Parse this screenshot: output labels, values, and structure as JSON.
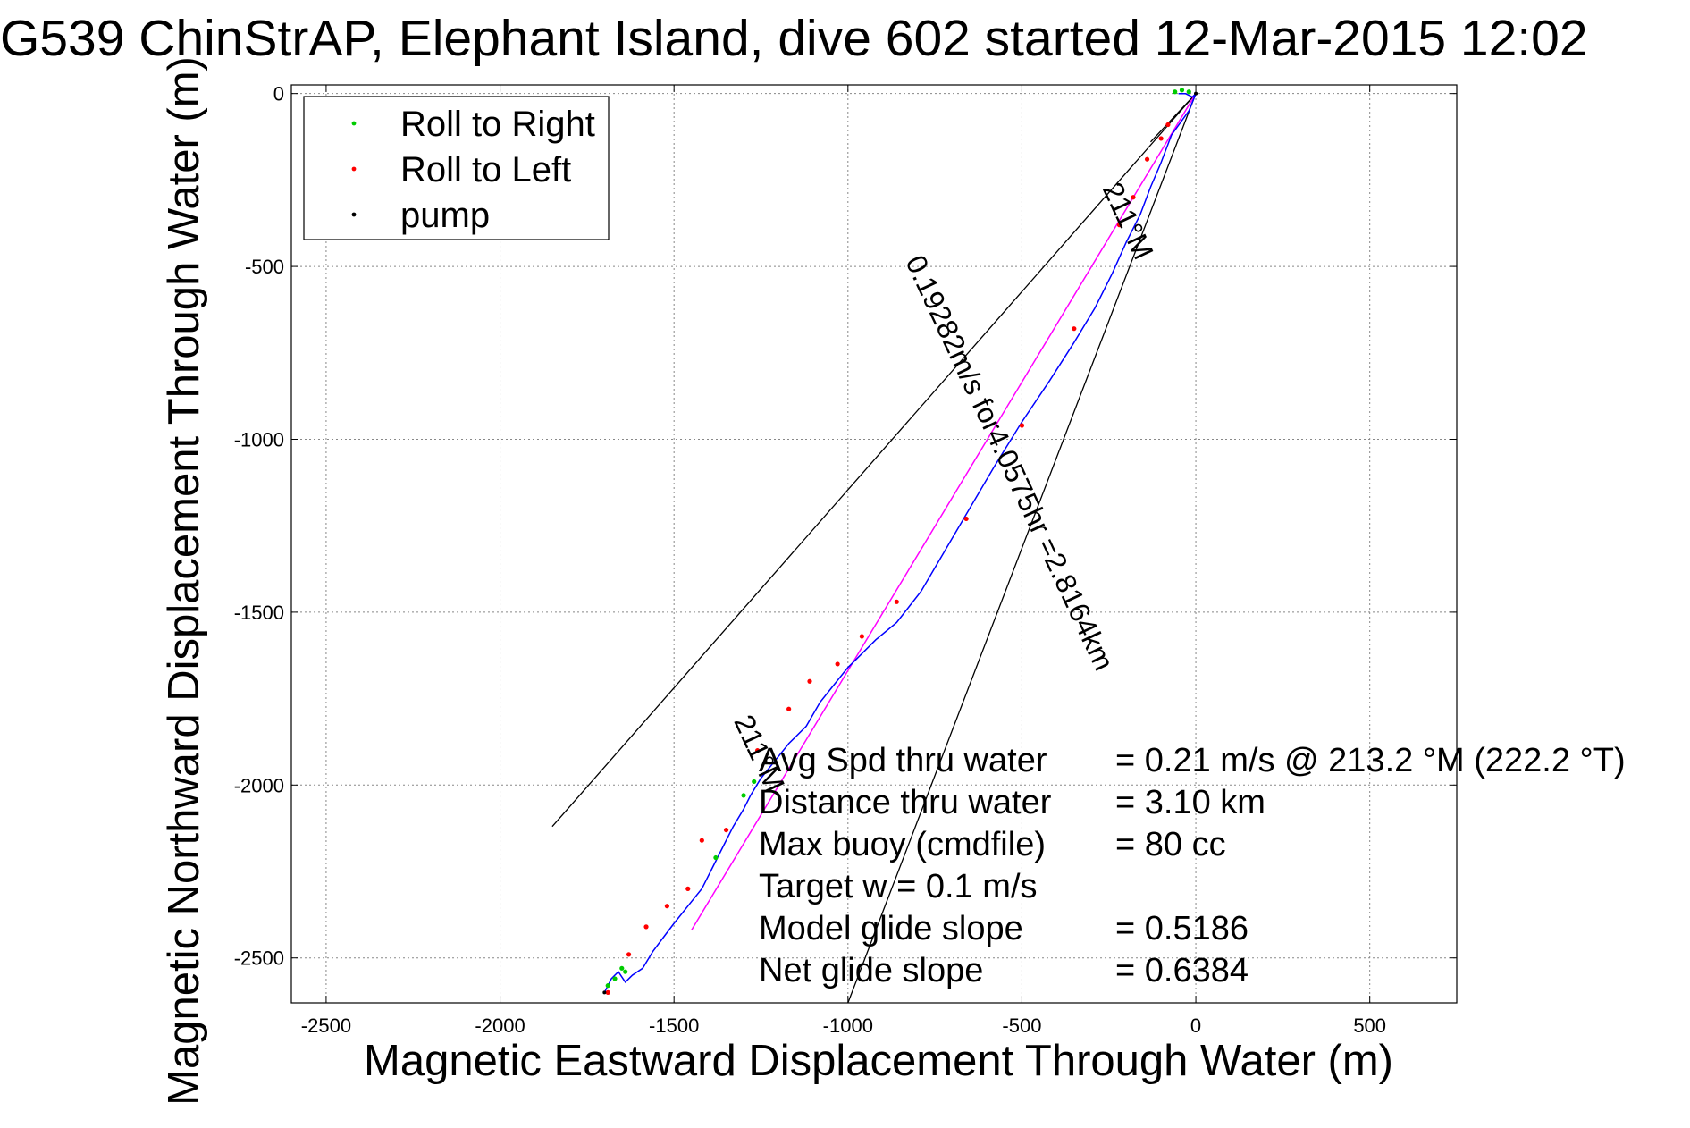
{
  "chart_data": {
    "type": "scatter",
    "title": "G539 ChinStrAP, Elephant Island, dive 602 started 12-Mar-2015 12:02",
    "xlabel": "Magnetic Eastward Displacement Through Water (m)",
    "ylabel": "Magnetic Northward Displacement Through Water (m)",
    "xlim": [
      -2600,
      750
    ],
    "ylim": [
      -2630,
      25
    ],
    "xticks": [
      -2500,
      -2000,
      -1500,
      -1000,
      -500,
      0,
      500
    ],
    "yticks": [
      0,
      -500,
      -1000,
      -1500,
      -2000,
      -2500
    ],
    "grid": true,
    "legend": {
      "placement": "top-left",
      "entries": [
        {
          "label": "Roll to Right",
          "color": "#00cc00"
        },
        {
          "label": "Roll to Left",
          "color": "#ff0000"
        },
        {
          "label": "pump",
          "color": "#000000"
        }
      ]
    },
    "track": {
      "color": "#0000ff",
      "x": [
        -50,
        -30,
        -10,
        0,
        -20,
        -70,
        -100,
        -130,
        -160,
        -200,
        -240,
        -290,
        -350,
        -420,
        -500,
        -580,
        -650,
        -720,
        -790,
        -860,
        -920,
        -960,
        -1000,
        -1040,
        -1080,
        -1120,
        -1170,
        -1210,
        -1250,
        -1280,
        -1300,
        -1330,
        -1360,
        -1390,
        -1420,
        -1460,
        -1500,
        -1530,
        -1560,
        -1590,
        -1620,
        -1640,
        -1660,
        -1680,
        -1700
      ],
      "y": [
        0,
        0,
        -10,
        0,
        -50,
        -120,
        -200,
        -270,
        -350,
        -430,
        -520,
        -620,
        -720,
        -830,
        -950,
        -1080,
        -1200,
        -1320,
        -1440,
        -1530,
        -1580,
        -1620,
        -1660,
        -1710,
        -1760,
        -1830,
        -1880,
        -1930,
        -1980,
        -2030,
        -2070,
        -2120,
        -2180,
        -2240,
        -2300,
        -2350,
        -2400,
        -2440,
        -2480,
        -2530,
        -2550,
        -2570,
        -2540,
        -2560,
        -2600
      ]
    },
    "roll_right": {
      "color": "#00cc00",
      "x": [
        -60,
        -40,
        -20,
        -1300,
        -1270,
        -1380,
        -1640,
        -1670,
        -1690,
        -1650
      ],
      "y": [
        5,
        10,
        5,
        -2030,
        -1990,
        -2210,
        -2540,
        -2560,
        -2580,
        -2530
      ]
    },
    "roll_left": {
      "color": "#ff0000",
      "x": [
        -80,
        -100,
        -140,
        -180,
        -220,
        -350,
        -500,
        -660,
        -860,
        -960,
        -1030,
        -1110,
        -1170,
        -1260,
        -1350,
        -1420,
        -1460,
        -1520,
        -1580,
        -1630,
        -1690
      ],
      "y": [
        -90,
        -130,
        -190,
        -300,
        -380,
        -680,
        -960,
        -1230,
        -1470,
        -1570,
        -1650,
        -1700,
        -1780,
        -1900,
        -2130,
        -2160,
        -2300,
        -2350,
        -2410,
        -2490,
        -2600
      ]
    },
    "pump": {
      "color": "#000000",
      "x": [
        0,
        -1700
      ],
      "y": [
        0,
        -2600
      ]
    },
    "model_line": {
      "color": "#ff00ff",
      "x1": 0,
      "y1": 0,
      "x2": -1450,
      "y2": -2420
    },
    "cone_lines": [
      {
        "color": "#000000",
        "x1": 0,
        "y1": 0,
        "x2": -1850,
        "y2": -2120
      },
      {
        "color": "#000000",
        "x1": 0,
        "y1": 0,
        "x2": -1000,
        "y2": -2630
      },
      {
        "color": "#000000",
        "x1": 0,
        "y1": 0,
        "x2": -130,
        "y2": -140
      }
    ],
    "rotated_labels": [
      {
        "text": "211°M",
        "x": -220,
        "y": -380,
        "angle": 65
      },
      {
        "text": "0.19282m/s for4.0575hr =2.8164km",
        "x": -560,
        "y": -1080,
        "angle": 65
      },
      {
        "text": "211°M",
        "x": -1280,
        "y": -1920,
        "angle": 65
      }
    ],
    "annotations": [
      {
        "label": "Avg Spd thru water",
        "value": "=  0.21 m/s @ 213.2 °M (222.2 °T)"
      },
      {
        "label": "Distance thru water",
        "value": "=  3.10 km"
      },
      {
        "label": "Max buoy (cmdfile)",
        "value": "= 80 cc"
      },
      {
        "label": "Target w    = 0.1 m/s",
        "value": ""
      },
      {
        "label": "Model glide slope",
        "value": "= 0.5186"
      },
      {
        "label": "Net glide slope",
        "value": "= 0.6384"
      }
    ]
  }
}
